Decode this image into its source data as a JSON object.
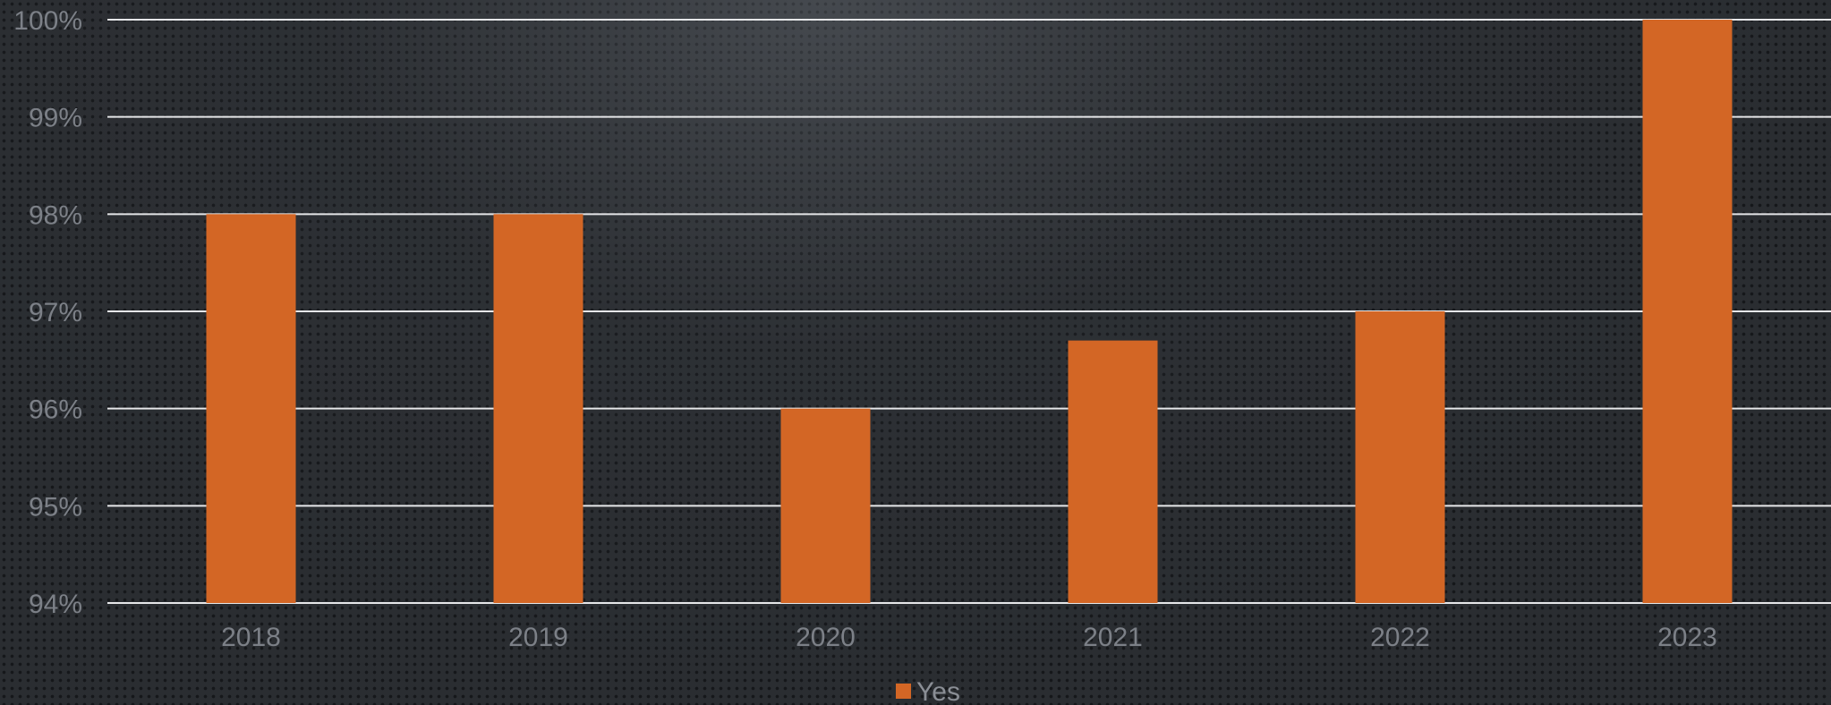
{
  "chart_data": {
    "type": "bar",
    "categories": [
      "2018",
      "2019",
      "2020",
      "2021",
      "2022",
      "2023"
    ],
    "series": [
      {
        "name": "Yes",
        "values": [
          98,
          98,
          96,
          96.7,
          97,
          100
        ],
        "color": "#d36625"
      }
    ],
    "ylim": [
      94,
      100
    ],
    "yticks": [
      "94%",
      "95%",
      "96%",
      "97%",
      "98%",
      "99%",
      "100%"
    ],
    "grid": true,
    "legend": "bottom"
  }
}
